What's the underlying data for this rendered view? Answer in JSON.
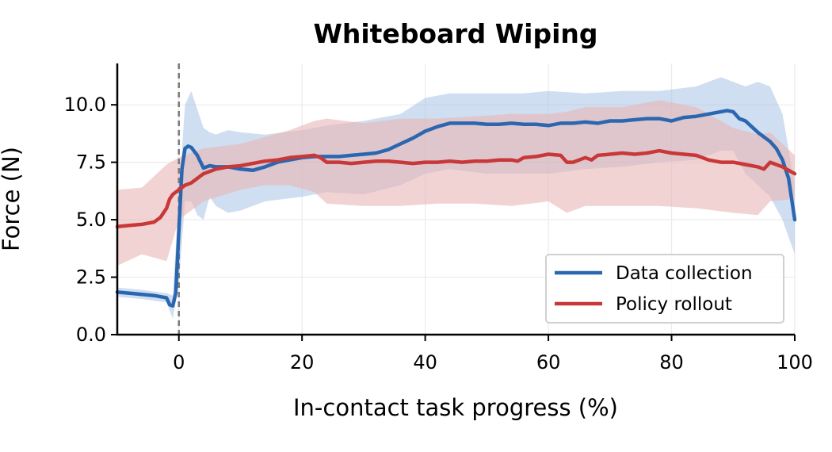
{
  "chart_data": {
    "type": "line",
    "title": "Whiteboard Wiping",
    "xlabel": "In-contact task progress (%)",
    "ylabel": "Force (N)",
    "xlim": [
      -10,
      100
    ],
    "ylim": [
      0,
      11.8
    ],
    "xticks": [
      0,
      20,
      40,
      60,
      80,
      100
    ],
    "yticks": [
      0.0,
      2.5,
      5.0,
      7.5,
      10.0
    ],
    "ytick_labels": [
      "0.0",
      "2.5",
      "5.0",
      "7.5",
      "10.0"
    ],
    "grid": true,
    "legend_position": "lower-right",
    "contact_marker_x": 0,
    "series": [
      {
        "name": "Data collection",
        "color": "#2b67b0",
        "band_color": "#a8c3e3",
        "points": [
          [
            -10,
            1.85
          ],
          [
            -8,
            1.8
          ],
          [
            -6,
            1.75
          ],
          [
            -4,
            1.7
          ],
          [
            -2,
            1.6
          ],
          [
            -1.5,
            1.3
          ],
          [
            -1,
            1.25
          ],
          [
            -0.5,
            1.8
          ],
          [
            0,
            4.5
          ],
          [
            0.5,
            7.2
          ],
          [
            1,
            8.1
          ],
          [
            1.5,
            8.2
          ],
          [
            2,
            8.15
          ],
          [
            3,
            7.8
          ],
          [
            4,
            7.25
          ],
          [
            5,
            7.35
          ],
          [
            6,
            7.3
          ],
          [
            8,
            7.3
          ],
          [
            10,
            7.2
          ],
          [
            12,
            7.15
          ],
          [
            14,
            7.3
          ],
          [
            16,
            7.5
          ],
          [
            18,
            7.6
          ],
          [
            20,
            7.7
          ],
          [
            22,
            7.75
          ],
          [
            24,
            7.75
          ],
          [
            26,
            7.75
          ],
          [
            28,
            7.8
          ],
          [
            30,
            7.85
          ],
          [
            32,
            7.9
          ],
          [
            34,
            8.05
          ],
          [
            36,
            8.3
          ],
          [
            38,
            8.55
          ],
          [
            40,
            8.85
          ],
          [
            42,
            9.05
          ],
          [
            44,
            9.2
          ],
          [
            46,
            9.2
          ],
          [
            48,
            9.2
          ],
          [
            50,
            9.15
          ],
          [
            52,
            9.15
          ],
          [
            54,
            9.2
          ],
          [
            56,
            9.15
          ],
          [
            58,
            9.15
          ],
          [
            60,
            9.1
          ],
          [
            62,
            9.2
          ],
          [
            64,
            9.2
          ],
          [
            66,
            9.25
          ],
          [
            68,
            9.2
          ],
          [
            70,
            9.3
          ],
          [
            72,
            9.3
          ],
          [
            74,
            9.35
          ],
          [
            76,
            9.4
          ],
          [
            78,
            9.4
          ],
          [
            80,
            9.3
          ],
          [
            82,
            9.45
          ],
          [
            84,
            9.5
          ],
          [
            86,
            9.6
          ],
          [
            88,
            9.7
          ],
          [
            89,
            9.75
          ],
          [
            90,
            9.7
          ],
          [
            91,
            9.4
          ],
          [
            92,
            9.3
          ],
          [
            93,
            9.05
          ],
          [
            94,
            8.8
          ],
          [
            95,
            8.6
          ],
          [
            96,
            8.4
          ],
          [
            97,
            8.1
          ],
          [
            98,
            7.6
          ],
          [
            99,
            6.8
          ],
          [
            100,
            5.0
          ]
        ],
        "band": [
          [
            -10,
            1.65,
            2.05
          ],
          [
            -6,
            1.55,
            1.95
          ],
          [
            -2,
            1.4,
            1.8
          ],
          [
            -1,
            0.7,
            1.7
          ],
          [
            0,
            2.2,
            6.0
          ],
          [
            1,
            5.8,
            10.0
          ],
          [
            2,
            5.8,
            10.6
          ],
          [
            3,
            5.2,
            9.8
          ],
          [
            4,
            5.0,
            9.0
          ],
          [
            5,
            6.0,
            8.8
          ],
          [
            6,
            5.6,
            8.7
          ],
          [
            8,
            5.3,
            8.9
          ],
          [
            10,
            5.4,
            8.8
          ],
          [
            14,
            5.8,
            8.7
          ],
          [
            20,
            6.0,
            8.9
          ],
          [
            24,
            6.2,
            9.1
          ],
          [
            30,
            6.1,
            9.3
          ],
          [
            36,
            6.5,
            9.6
          ],
          [
            40,
            7.0,
            10.3
          ],
          [
            44,
            7.2,
            10.5
          ],
          [
            50,
            7.0,
            10.5
          ],
          [
            56,
            7.0,
            10.5
          ],
          [
            60,
            7.0,
            10.6
          ],
          [
            66,
            7.2,
            10.5
          ],
          [
            72,
            7.3,
            10.6
          ],
          [
            78,
            7.5,
            10.6
          ],
          [
            84,
            7.6,
            10.8
          ],
          [
            88,
            8.0,
            11.2
          ],
          [
            90,
            8.0,
            11.0
          ],
          [
            92,
            7.0,
            10.8
          ],
          [
            94,
            6.5,
            11.0
          ],
          [
            96,
            6.0,
            10.8
          ],
          [
            98,
            5.0,
            9.6
          ],
          [
            100,
            3.5,
            6.5
          ]
        ]
      },
      {
        "name": "Policy rollout",
        "color": "#c83838",
        "band_color": "#eab5b5",
        "points": [
          [
            -10,
            4.7
          ],
          [
            -8,
            4.75
          ],
          [
            -6,
            4.8
          ],
          [
            -4,
            4.9
          ],
          [
            -3,
            5.1
          ],
          [
            -2,
            5.5
          ],
          [
            -1.5,
            5.9
          ],
          [
            -1,
            6.1
          ],
          [
            0,
            6.3
          ],
          [
            1,
            6.5
          ],
          [
            2,
            6.6
          ],
          [
            4,
            7.0
          ],
          [
            6,
            7.2
          ],
          [
            8,
            7.3
          ],
          [
            10,
            7.35
          ],
          [
            12,
            7.45
          ],
          [
            14,
            7.55
          ],
          [
            16,
            7.6
          ],
          [
            18,
            7.7
          ],
          [
            20,
            7.75
          ],
          [
            22,
            7.8
          ],
          [
            23,
            7.7
          ],
          [
            24,
            7.5
          ],
          [
            26,
            7.5
          ],
          [
            28,
            7.45
          ],
          [
            30,
            7.5
          ],
          [
            32,
            7.55
          ],
          [
            34,
            7.55
          ],
          [
            36,
            7.5
          ],
          [
            38,
            7.45
          ],
          [
            40,
            7.5
          ],
          [
            42,
            7.5
          ],
          [
            44,
            7.55
          ],
          [
            46,
            7.5
          ],
          [
            48,
            7.55
          ],
          [
            50,
            7.55
          ],
          [
            52,
            7.6
          ],
          [
            54,
            7.6
          ],
          [
            55,
            7.55
          ],
          [
            56,
            7.7
          ],
          [
            58,
            7.75
          ],
          [
            60,
            7.85
          ],
          [
            62,
            7.8
          ],
          [
            63,
            7.5
          ],
          [
            64,
            7.5
          ],
          [
            66,
            7.7
          ],
          [
            67,
            7.6
          ],
          [
            68,
            7.8
          ],
          [
            70,
            7.85
          ],
          [
            72,
            7.9
          ],
          [
            74,
            7.85
          ],
          [
            76,
            7.9
          ],
          [
            78,
            8.0
          ],
          [
            80,
            7.9
          ],
          [
            82,
            7.85
          ],
          [
            84,
            7.8
          ],
          [
            86,
            7.6
          ],
          [
            88,
            7.5
          ],
          [
            90,
            7.5
          ],
          [
            92,
            7.4
          ],
          [
            94,
            7.3
          ],
          [
            95,
            7.2
          ],
          [
            96,
            7.5
          ],
          [
            98,
            7.3
          ],
          [
            100,
            7.0
          ]
        ],
        "band": [
          [
            -10,
            3.0,
            6.3
          ],
          [
            -6,
            3.5,
            6.4
          ],
          [
            -2,
            3.2,
            7.4
          ],
          [
            0,
            5.0,
            7.7
          ],
          [
            4,
            5.8,
            8.1
          ],
          [
            10,
            6.3,
            8.3
          ],
          [
            14,
            6.5,
            8.6
          ],
          [
            18,
            6.5,
            8.9
          ],
          [
            22,
            6.2,
            9.3
          ],
          [
            24,
            5.7,
            9.4
          ],
          [
            30,
            5.6,
            9.2
          ],
          [
            36,
            5.6,
            9.4
          ],
          [
            42,
            5.7,
            9.4
          ],
          [
            48,
            5.7,
            9.5
          ],
          [
            54,
            5.6,
            9.6
          ],
          [
            60,
            5.8,
            9.6
          ],
          [
            63,
            5.3,
            9.7
          ],
          [
            66,
            5.6,
            9.9
          ],
          [
            72,
            5.6,
            9.9
          ],
          [
            78,
            5.6,
            10.2
          ],
          [
            84,
            5.5,
            9.9
          ],
          [
            90,
            5.3,
            9.0
          ],
          [
            94,
            5.2,
            8.7
          ],
          [
            96,
            5.8,
            8.8
          ],
          [
            100,
            5.9,
            7.8
          ]
        ]
      }
    ]
  }
}
